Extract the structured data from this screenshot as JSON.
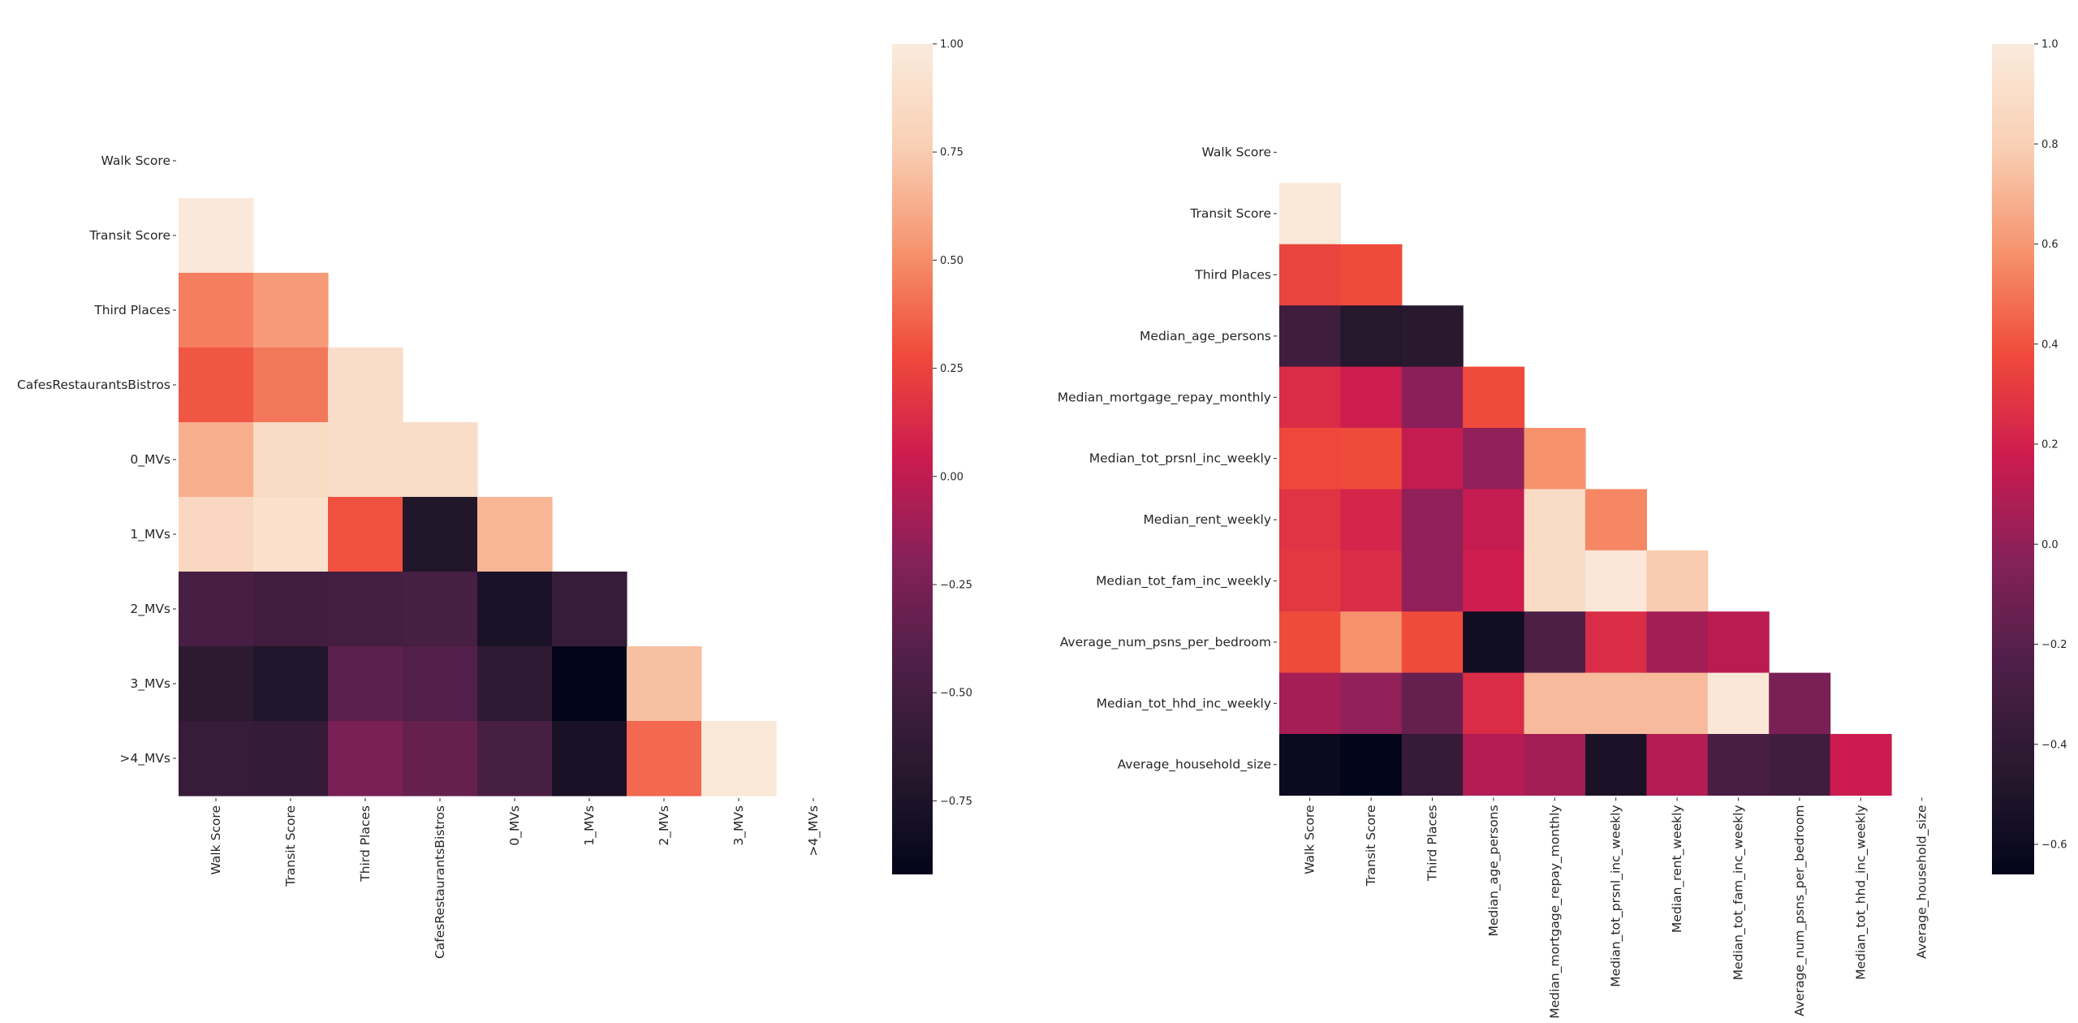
{
  "chart_data": [
    {
      "type": "heatmap",
      "title": "",
      "xlabel": "",
      "ylabel": "",
      "mask": "upper-triangle",
      "variables": [
        "Walk Score",
        "Transit Score",
        "Third Places",
        "CafesRestaurantsBistros",
        "0_MVs",
        "1_MVs",
        "2_MVs",
        "3_MVs",
        ">4_MVs"
      ],
      "matrix": [
        [
          1.0,
          0.98,
          0.45,
          0.32,
          0.63,
          0.83,
          -0.47,
          -0.65,
          -0.58
        ],
        [
          0.98,
          1.0,
          0.55,
          0.43,
          0.85,
          0.91,
          -0.52,
          -0.73,
          -0.6
        ],
        [
          0.45,
          0.55,
          1.0,
          0.88,
          0.88,
          0.3,
          -0.5,
          -0.38,
          -0.25
        ],
        [
          0.32,
          0.43,
          0.88,
          1.0,
          0.88,
          -0.72,
          -0.48,
          -0.42,
          -0.33
        ],
        [
          0.63,
          0.85,
          0.88,
          0.88,
          1.0,
          0.66,
          -0.77,
          -0.64,
          -0.48
        ],
        [
          0.83,
          0.91,
          0.3,
          -0.72,
          0.66,
          1.0,
          -0.58,
          -0.93,
          -0.78
        ],
        [
          -0.47,
          -0.52,
          -0.5,
          -0.48,
          -0.77,
          -0.58,
          1.0,
          0.7,
          0.38
        ],
        [
          -0.65,
          -0.73,
          -0.38,
          -0.42,
          -0.64,
          -0.93,
          0.7,
          1.0,
          0.97
        ],
        [
          -0.58,
          -0.6,
          -0.25,
          -0.33,
          -0.48,
          -0.78,
          0.38,
          0.97,
          1.0
        ]
      ],
      "colorbar": {
        "vmin": -0.92,
        "vmax": 1.0,
        "ticks": [
          1.0,
          0.75,
          0.5,
          0.25,
          0.0,
          -0.25,
          -0.5,
          -0.75
        ],
        "tick_labels": [
          "1.00",
          "0.75",
          "0.50",
          "0.25",
          "0.00",
          "−0.25",
          "−0.50",
          "−0.75"
        ]
      },
      "grid": false,
      "colormap": "rocket"
    },
    {
      "type": "heatmap",
      "title": "",
      "xlabel": "",
      "ylabel": "",
      "mask": "upper-triangle",
      "variables": [
        "Walk Score",
        "Transit Score",
        "Third Places",
        "Median_age_persons",
        "Median_mortgage_repay_monthly",
        "Median_tot_prsnl_inc_weekly",
        "Median_rent_weekly",
        "Median_tot_fam_inc_weekly",
        "Average_num_psns_per_bedroom",
        "Median_tot_hhd_inc_weekly",
        "Average_household_size"
      ],
      "matrix": [
        [
          1.0,
          0.98,
          0.35,
          -0.33,
          0.25,
          0.37,
          0.28,
          0.3,
          0.38,
          0.06,
          -0.61
        ],
        [
          0.98,
          1.0,
          0.38,
          -0.47,
          0.18,
          0.38,
          0.22,
          0.25,
          0.58,
          0.0,
          -0.66
        ],
        [
          0.35,
          0.38,
          1.0,
          -0.45,
          -0.02,
          0.15,
          0.0,
          0.0,
          0.38,
          -0.15,
          -0.38
        ],
        [
          -0.33,
          -0.47,
          -0.45,
          1.0,
          0.38,
          0.0,
          0.15,
          0.18,
          -0.58,
          0.25,
          0.1
        ],
        [
          0.25,
          0.18,
          -0.02,
          0.38,
          1.0,
          0.58,
          0.88,
          0.88,
          -0.25,
          0.72,
          0.05
        ],
        [
          0.37,
          0.38,
          0.15,
          0.0,
          0.58,
          1.0,
          0.55,
          0.97,
          0.25,
          0.72,
          -0.52
        ],
        [
          0.28,
          0.22,
          0.0,
          0.15,
          0.88,
          0.55,
          1.0,
          0.78,
          0.05,
          0.72,
          0.1
        ],
        [
          0.3,
          0.25,
          0.0,
          0.18,
          0.88,
          0.97,
          0.78,
          1.0,
          0.12,
          0.97,
          -0.27
        ],
        [
          0.38,
          0.58,
          0.38,
          -0.58,
          -0.25,
          0.25,
          0.05,
          0.12,
          1.0,
          -0.08,
          -0.32
        ],
        [
          0.06,
          0.0,
          -0.15,
          0.25,
          0.72,
          0.72,
          0.72,
          0.97,
          -0.08,
          1.0,
          0.17
        ],
        [
          -0.61,
          -0.66,
          -0.38,
          0.1,
          0.05,
          -0.52,
          0.1,
          -0.27,
          -0.32,
          0.17,
          1.0
        ]
      ],
      "colorbar": {
        "vmin": -0.66,
        "vmax": 1.0,
        "ticks": [
          1.0,
          0.8,
          0.6,
          0.4,
          0.2,
          0.0,
          -0.2,
          -0.4,
          -0.6
        ],
        "tick_labels": [
          "1.0",
          "0.8",
          "0.6",
          "0.4",
          "0.2",
          "0.0",
          "−0.2",
          "−0.4",
          "−0.6"
        ]
      },
      "grid": false,
      "colormap": "rocket"
    }
  ]
}
